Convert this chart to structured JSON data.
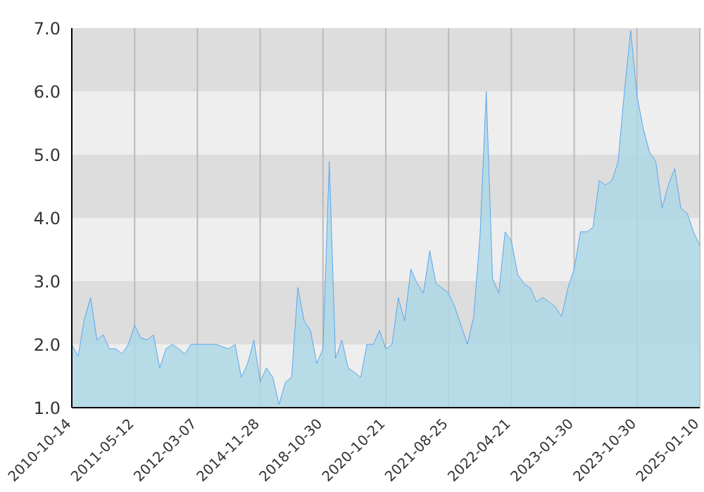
{
  "chart_data": {
    "type": "area",
    "categories": [
      "2010-10-14",
      null,
      null,
      null,
      null,
      null,
      null,
      null,
      null,
      null,
      "2011-05-12",
      null,
      null,
      null,
      null,
      null,
      null,
      null,
      null,
      null,
      "2012-03-07",
      null,
      null,
      null,
      null,
      null,
      null,
      null,
      null,
      null,
      "2014-11-28",
      null,
      null,
      null,
      null,
      null,
      null,
      null,
      null,
      null,
      "2018-10-30",
      null,
      null,
      null,
      null,
      null,
      null,
      null,
      null,
      null,
      "2020-10-21",
      null,
      null,
      null,
      null,
      null,
      null,
      null,
      null,
      null,
      "2021-08-25",
      null,
      null,
      null,
      null,
      null,
      null,
      null,
      null,
      null,
      "2022-04-21",
      null,
      null,
      null,
      null,
      null,
      null,
      null,
      null,
      null,
      "2023-01-30",
      null,
      null,
      null,
      null,
      null,
      null,
      null,
      null,
      null,
      "2023-10-30",
      null,
      null,
      null,
      null,
      null,
      null,
      null,
      null,
      null,
      "2025-01-10"
    ],
    "series": [
      {
        "color": "#5aa5f0",
        "values": [
          2.0,
          1.81,
          2.4,
          2.74,
          2.07,
          2.15,
          1.93,
          1.93,
          1.85,
          2.0,
          2.3,
          2.1,
          2.07,
          2.15,
          1.63,
          1.93,
          2.0,
          1.93,
          1.85,
          2.0,
          2.0,
          2.0,
          2.0,
          2.0,
          1.96,
          1.93,
          2.0,
          1.48,
          1.7,
          2.07,
          1.41,
          1.63,
          1.48,
          1.05,
          1.4,
          1.48,
          2.9,
          2.37,
          2.22,
          1.7,
          1.93,
          4.89,
          1.78,
          2.07,
          1.63,
          1.56,
          1.48,
          2.0,
          2.0,
          2.22,
          1.93,
          2.0,
          2.74,
          2.37,
          3.19,
          2.96,
          2.81,
          3.48,
          2.96,
          2.89,
          2.81,
          2.59,
          2.3,
          2.0,
          2.44,
          3.7,
          6.0,
          3.04,
          2.81,
          3.78,
          3.63,
          3.11,
          2.96,
          2.89,
          2.67,
          2.74,
          2.67,
          2.59,
          2.44,
          2.89,
          3.19,
          3.78,
          3.78,
          3.85,
          4.59,
          4.52,
          4.59,
          4.89,
          6.0,
          6.96,
          5.93,
          5.41,
          5.04,
          4.89,
          4.15,
          4.52,
          4.78,
          4.15,
          4.07,
          3.78,
          3.56
        ]
      }
    ],
    "ylim": [
      1.0,
      7.0
    ],
    "yticks": [
      {
        "value": 1,
        "label": "1.0"
      },
      {
        "value": 2,
        "label": "2.0"
      },
      {
        "value": 3,
        "label": "3.0"
      },
      {
        "value": 4,
        "label": "4.0"
      },
      {
        "value": 5,
        "label": "5.0"
      },
      {
        "value": 6,
        "label": "6.0"
      },
      {
        "value": 7,
        "label": "7.0"
      }
    ],
    "grid": true
  }
}
